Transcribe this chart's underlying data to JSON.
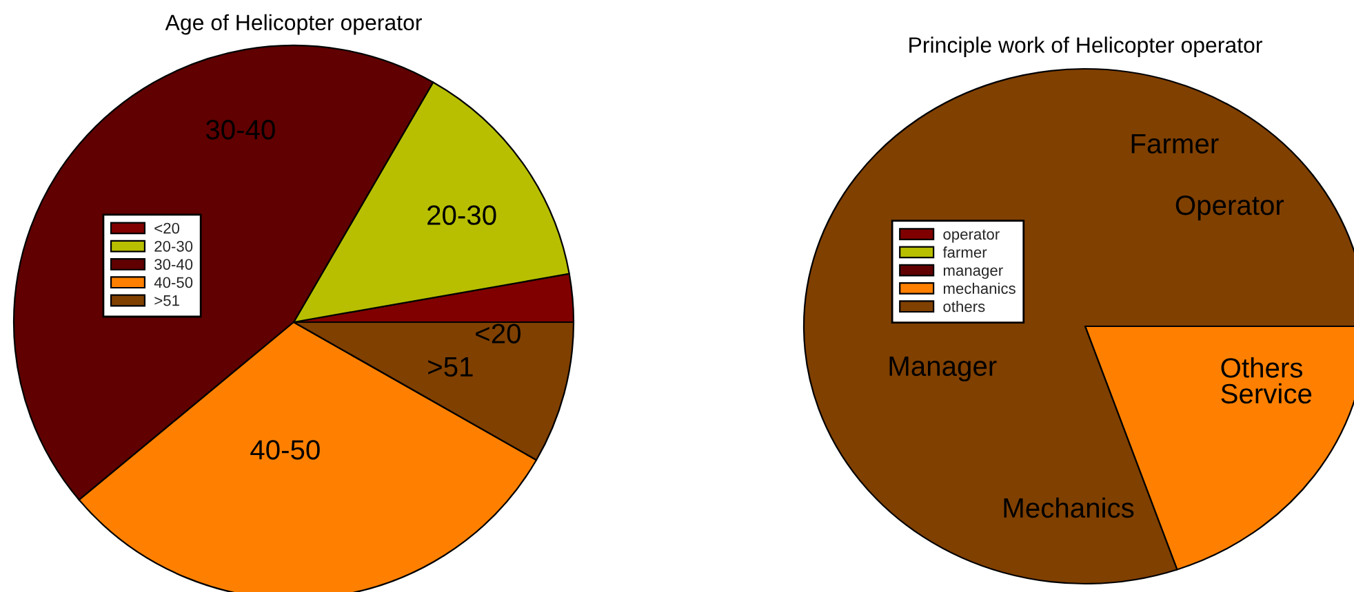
{
  "chart_data": [
    {
      "type": "pie",
      "title": "Age of Helicopter operator",
      "categories": [
        "<20",
        "20-30",
        "30-40",
        "40-50",
        ">51"
      ],
      "values": [
        2.8,
        13.9,
        44.4,
        30.6,
        8.3
      ],
      "colors": [
        "#800000",
        "#b8bf00",
        "#600000",
        "#ff8000",
        "#804000"
      ],
      "legend": "left"
    },
    {
      "type": "pie",
      "title": "Principle work of Helicopter operator",
      "categories": [
        "operator",
        "farmer",
        "manager",
        "mechanics",
        "others"
      ],
      "values": [
        0,
        0,
        0,
        19.7,
        80.3
      ],
      "colors": [
        "#800000",
        "#b8bf00",
        "#600000",
        "#ff8000",
        "#804000"
      ],
      "legend": "left",
      "annotations": [
        "Farmer",
        "Operator",
        "Manager",
        "Others\nService",
        "Mechanics"
      ]
    }
  ]
}
